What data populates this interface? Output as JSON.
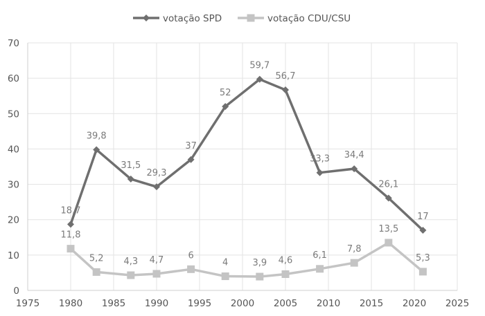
{
  "chart_data": {
    "type": "line",
    "title": "",
    "xlabel": "",
    "ylabel": "",
    "xlim": [
      1975,
      2025
    ],
    "ylim": [
      0,
      70
    ],
    "x_ticks": [
      1975,
      1980,
      1985,
      1990,
      1995,
      2000,
      2005,
      2010,
      2015,
      2020,
      2025
    ],
    "y_ticks": [
      0,
      10,
      20,
      30,
      40,
      50,
      60,
      70
    ],
    "grid": true,
    "legend_position": "top-center",
    "series": [
      {
        "name": "votação SPD",
        "color": "#6f6f6f",
        "marker": "diamond",
        "x": [
          1980,
          1983,
          1987,
          1990,
          1994,
          1998,
          2002,
          2005,
          2009,
          2013,
          2017,
          2021
        ],
        "values": [
          18.7,
          39.8,
          31.5,
          29.3,
          37,
          52,
          59.7,
          56.7,
          33.3,
          34.4,
          26.1,
          17
        ],
        "labels": [
          "18,7",
          "39,8",
          "31,5",
          "29,3",
          "37",
          "52",
          "59,7",
          "56,7",
          "33,3",
          "34,4",
          "26,1",
          "17"
        ]
      },
      {
        "name": "votação CDU/CSU",
        "color": "#c4c4c4",
        "marker": "square",
        "x": [
          1980,
          1983,
          1987,
          1990,
          1994,
          1998,
          2002,
          2005,
          2009,
          2013,
          2017,
          2021
        ],
        "values": [
          11.8,
          5.2,
          4.3,
          4.7,
          6,
          4,
          3.9,
          4.6,
          6.1,
          7.8,
          13.5,
          5.3
        ],
        "labels": [
          "11,8",
          "5,2",
          "4,3",
          "4,7",
          "6",
          "4",
          "3,9",
          "4,6",
          "6,1",
          "7,8",
          "13,5",
          "5,3"
        ]
      }
    ]
  }
}
